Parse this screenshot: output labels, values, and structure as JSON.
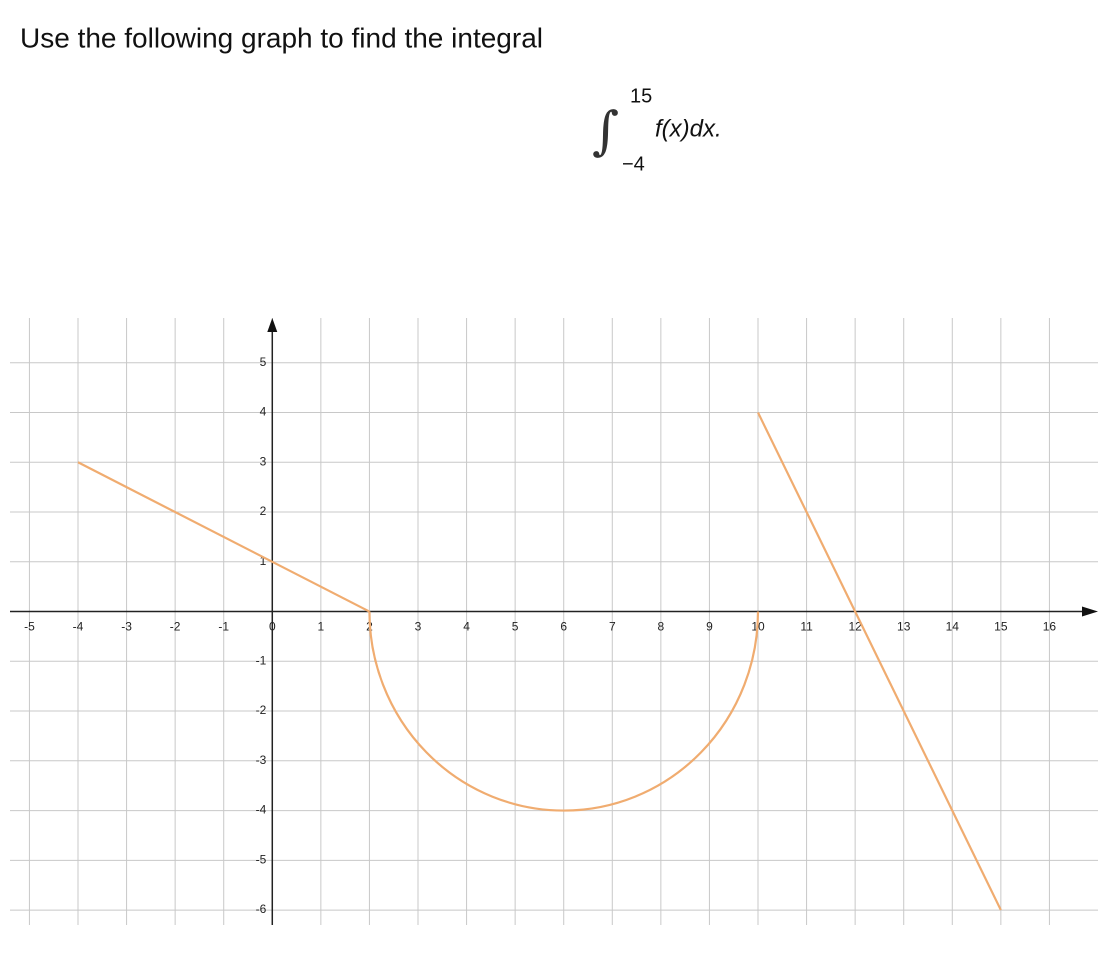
{
  "question": {
    "text": "Use the following graph to find the integral",
    "integral": {
      "upper": "15",
      "lower": "−4",
      "integrand": "f(x)dx."
    }
  },
  "chart_data": {
    "type": "line",
    "color": "#f0ac70",
    "grid": true,
    "xlim": [
      -5.4,
      17
    ],
    "ylim": [
      -6.3,
      5.9
    ],
    "xticks": [
      -5,
      -4,
      -3,
      -2,
      -1,
      0,
      1,
      2,
      3,
      4,
      5,
      6,
      7,
      8,
      9,
      10,
      11,
      12,
      13,
      14,
      15,
      16
    ],
    "yticks": [
      -6,
      -5,
      -4,
      -3,
      -2,
      -1,
      1,
      2,
      3,
      4,
      5
    ],
    "pieces": [
      {
        "curve": "line",
        "x": [
          -4,
          2
        ],
        "values": [
          3,
          0
        ]
      },
      {
        "curve": "semicircle",
        "x": [
          2,
          6,
          10
        ],
        "values": [
          0,
          -4,
          0
        ]
      },
      {
        "curve": "line",
        "x": [
          10,
          15
        ],
        "values": [
          4,
          -6
        ]
      }
    ]
  }
}
